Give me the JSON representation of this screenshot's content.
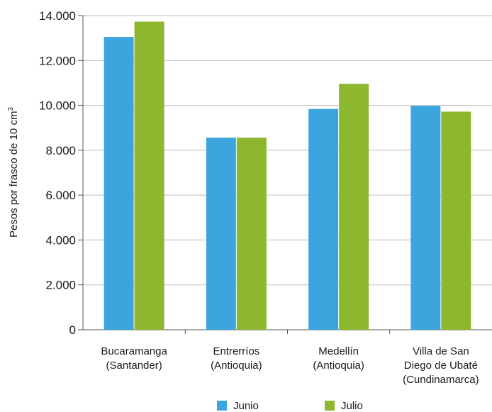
{
  "chart_data": {
    "type": "bar",
    "categories": [
      [
        "Bucaramanga",
        "(Santander)"
      ],
      [
        "Entrerríos",
        "(Antioquia)"
      ],
      [
        "Medellín",
        "(Antioquia)"
      ],
      [
        "Villa de San",
        "Diego de Ubaté",
        "(Cundinamarca)"
      ]
    ],
    "series": [
      {
        "name": "Junio",
        "color": "#3DA5DE",
        "values": [
          13050,
          8560,
          9840,
          9980
        ]
      },
      {
        "name": "Julio",
        "color": "#8DB72E",
        "values": [
          13730,
          8560,
          10960,
          9720
        ]
      }
    ],
    "ylabel": "Pesos por frasco de 10 cm",
    "ylabel_superscript": "3",
    "ylim": [
      0,
      14000
    ],
    "yticks": [
      0,
      2000,
      4000,
      6000,
      8000,
      10000,
      12000,
      14000
    ],
    "ytick_labels": [
      "0",
      "2.000",
      "4.000",
      "6.000",
      "8.000",
      "10.000",
      "12.000",
      "14.000"
    ],
    "grid": true,
    "legend_position": "bottom"
  }
}
